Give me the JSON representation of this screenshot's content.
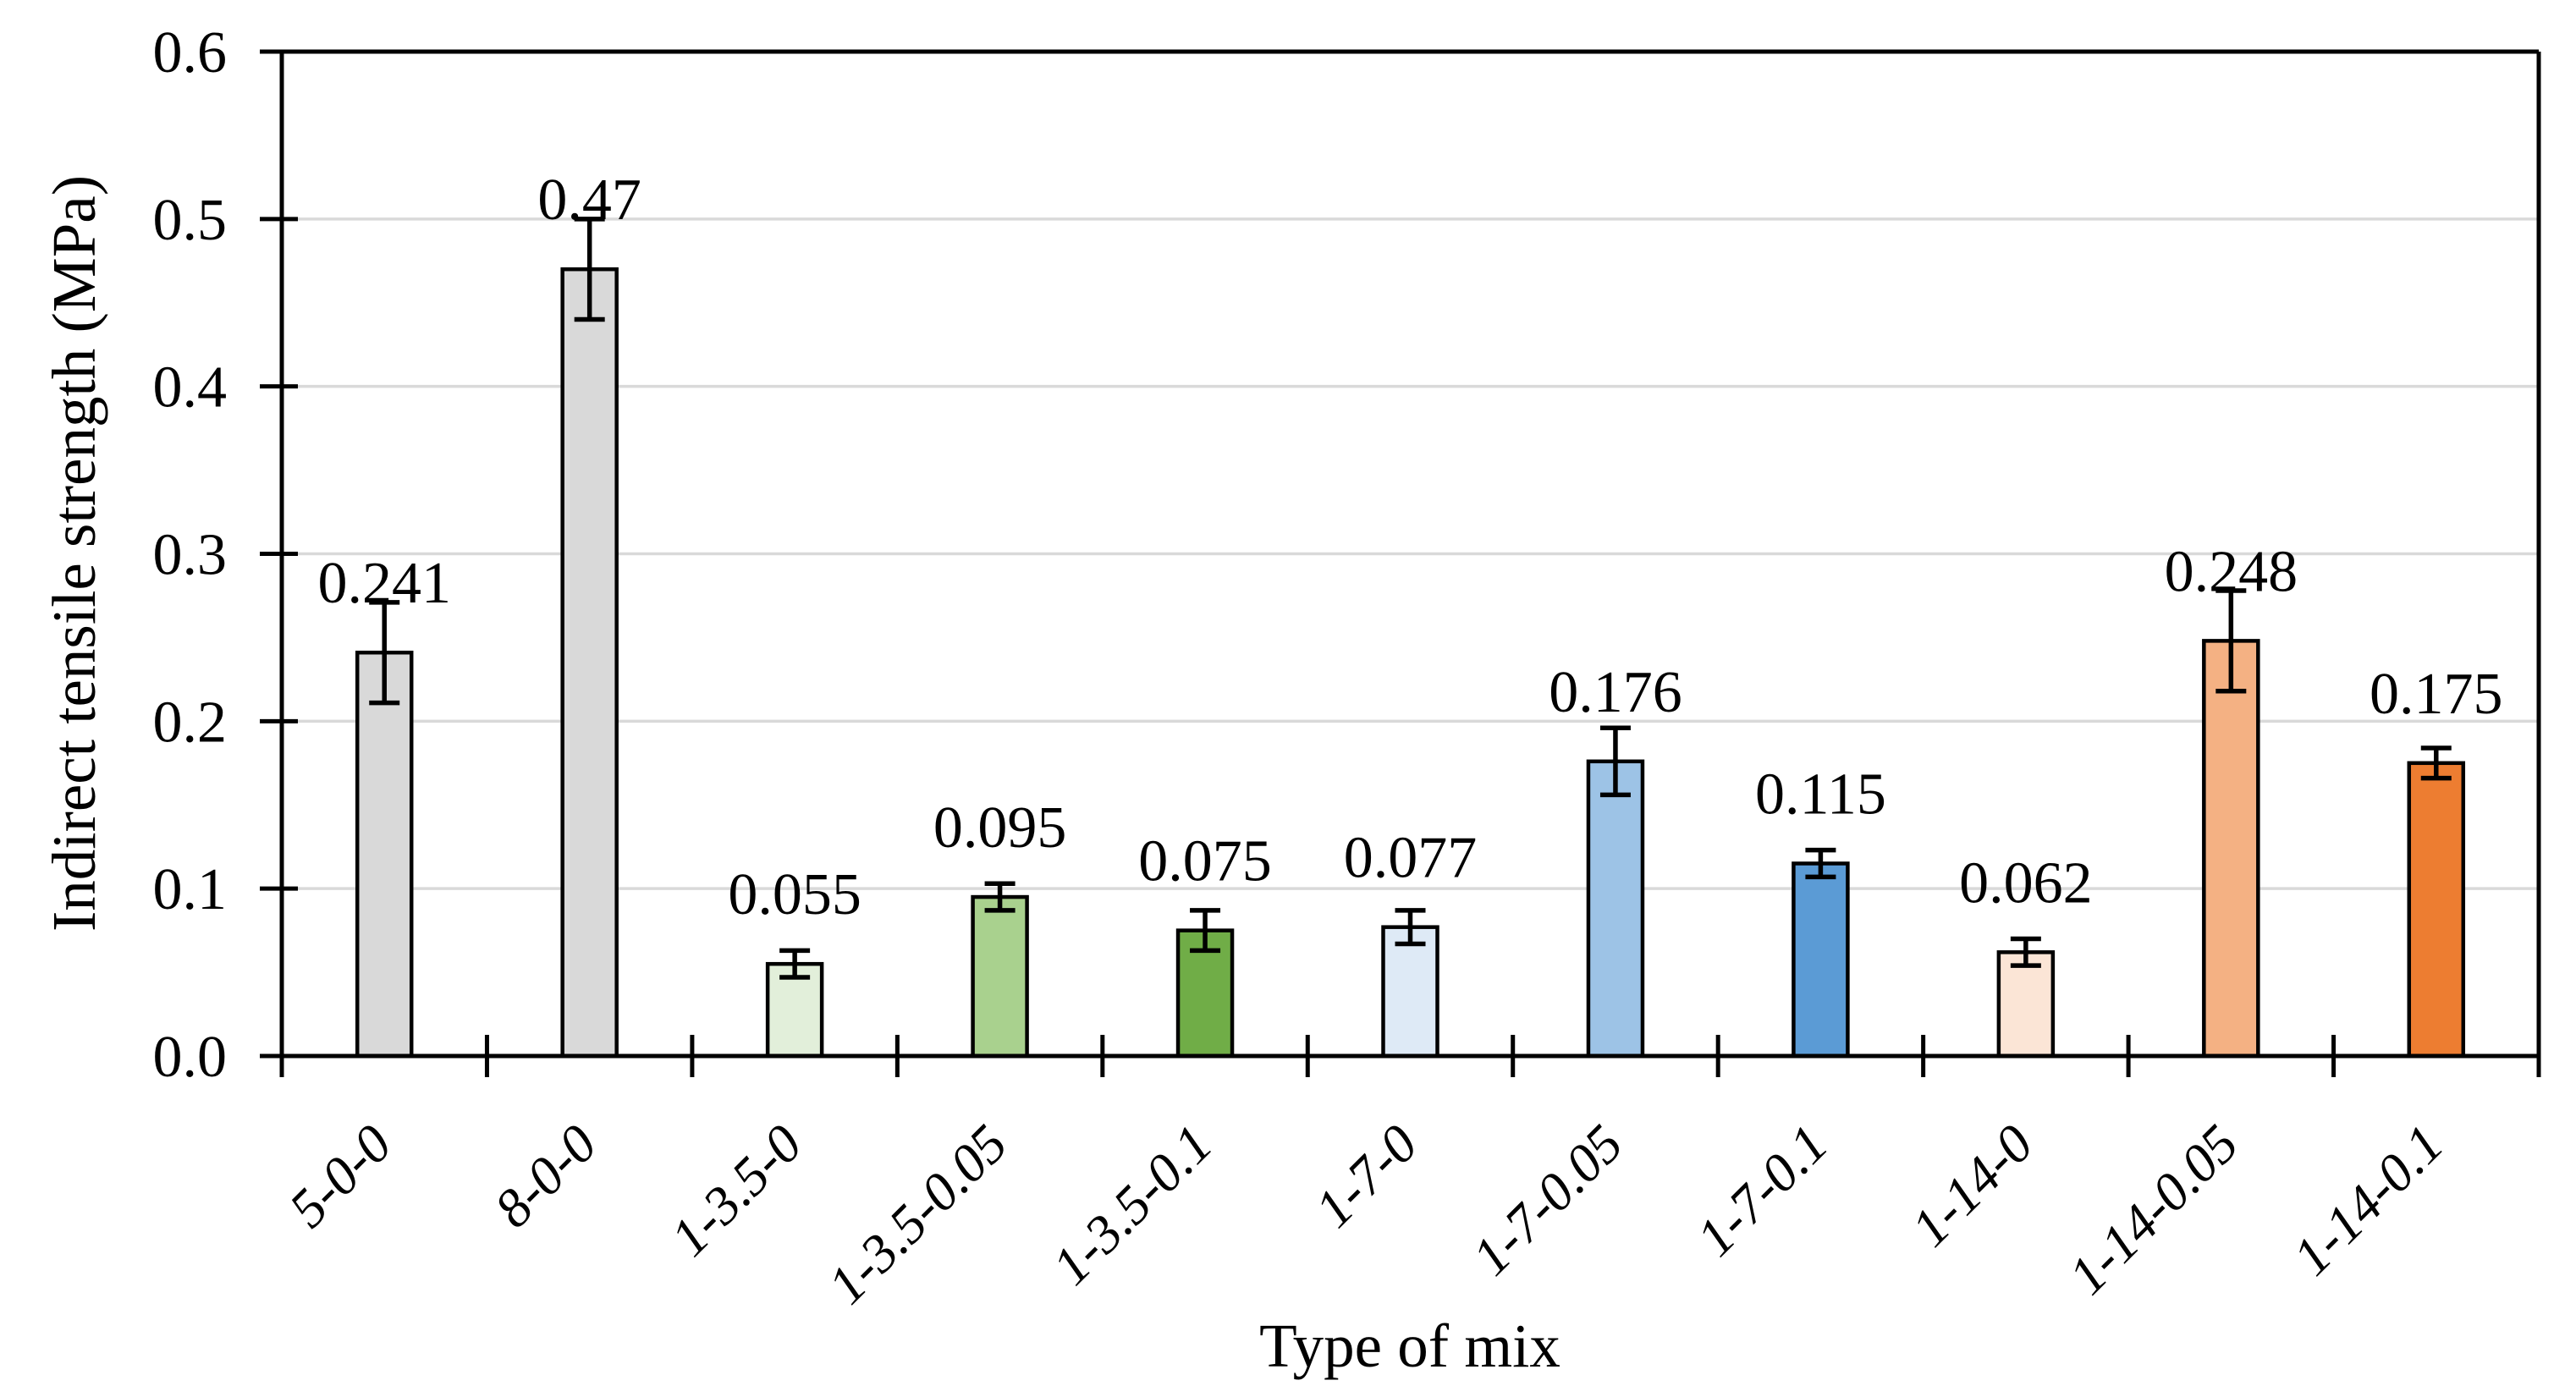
{
  "chart_data": {
    "type": "bar",
    "title": "",
    "xlabel": "Type of mix",
    "ylabel": "Indirect tensile strength (MPa)",
    "ylim": [
      0,
      0.6
    ],
    "ytick_interval": 0.1,
    "ytick_labels": [
      "0.0",
      "0.1",
      "0.2",
      "0.3",
      "0.4",
      "0.5",
      "0.6"
    ],
    "grid": "horizontal",
    "legend": "none",
    "categories": [
      "5-0-0",
      "8-0-0",
      "1-3.5-0",
      "1-3.5-0.05",
      "1-3.5-0.1",
      "1-7-0",
      "1-7-0.05",
      "1-7-0.1",
      "1-14-0",
      "1-14-0.05",
      "1-14-0.1"
    ],
    "series": [
      {
        "name": "Indirect tensile strength",
        "values": [
          0.241,
          0.47,
          0.055,
          0.095,
          0.075,
          0.077,
          0.176,
          0.115,
          0.062,
          0.248,
          0.175
        ],
        "value_labels": [
          "0.241",
          "0.47",
          "0.055",
          "0.095",
          "0.075",
          "0.077",
          "0.176",
          "0.115",
          "0.062",
          "0.248",
          "0.175"
        ],
        "error_bars": [
          0.03,
          0.03,
          0.008,
          0.008,
          0.012,
          0.01,
          0.02,
          0.008,
          0.008,
          0.03,
          0.009
        ]
      }
    ],
    "bar_colors": [
      "#D9D9D9",
      "#D9D9D9",
      "#E2EFDA",
      "#A9D18E",
      "#70AD47",
      "#DEEAF6",
      "#9DC3E6",
      "#5B9BD5",
      "#FBE5D6",
      "#F4B183",
      "#ED7D31"
    ],
    "colors": {
      "bar_outline": "#000000",
      "axis": "#000000",
      "gridline": "#D9D9D9",
      "error_bar": "#000000",
      "text": "#000000",
      "background": "#FFFFFF"
    }
  }
}
